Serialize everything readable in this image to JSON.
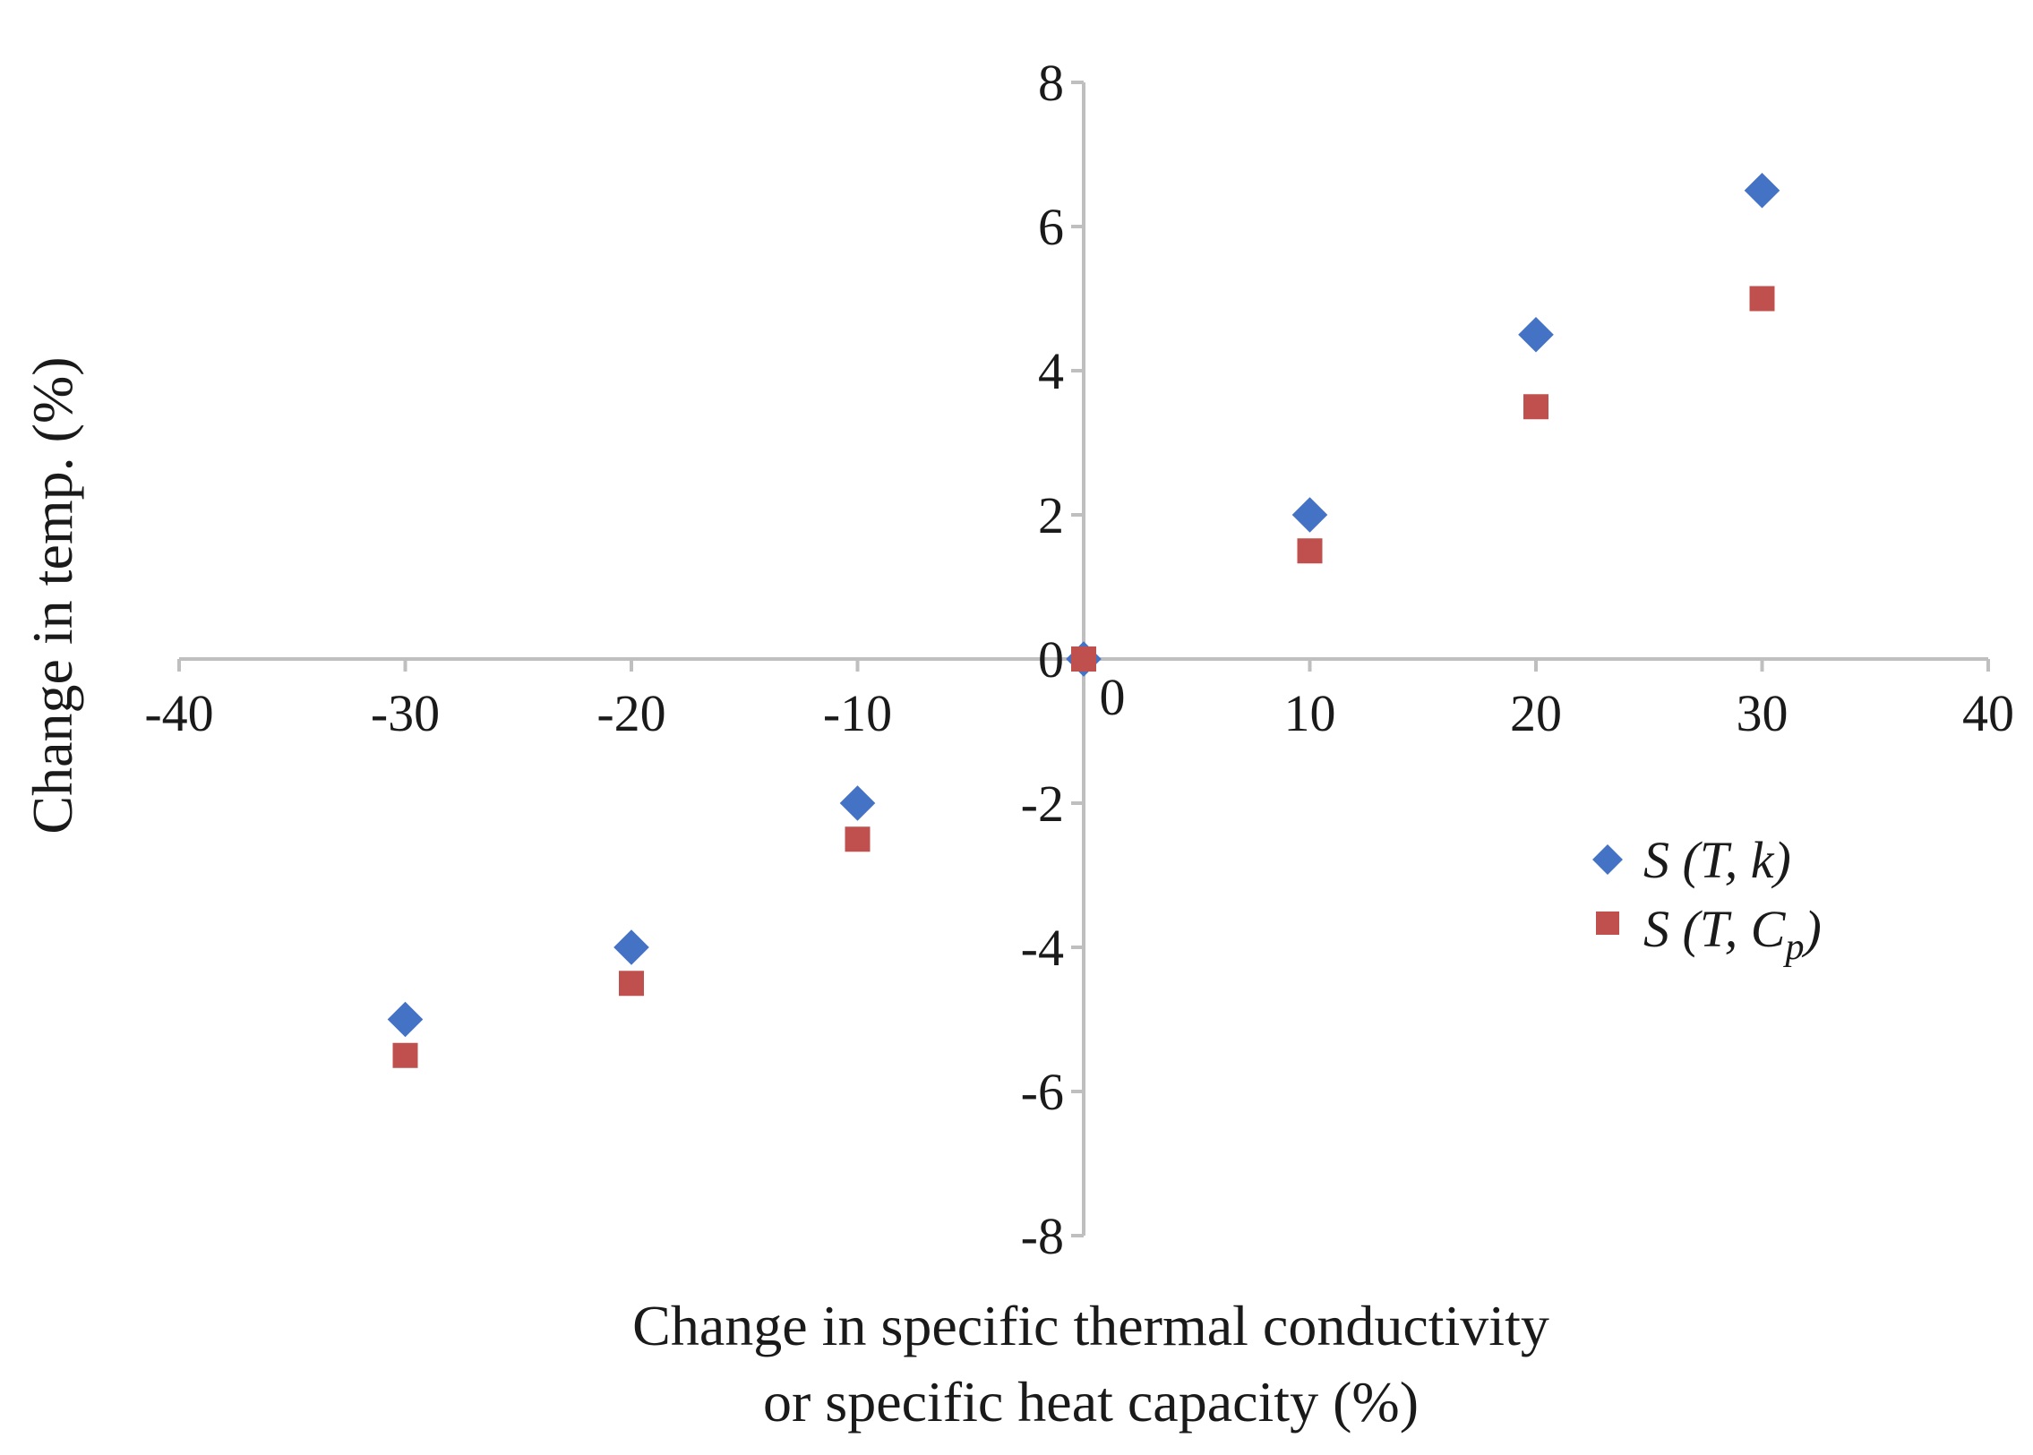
{
  "chart_data": {
    "type": "scatter",
    "xlabel_lines": [
      "Change in specific thermal conductivity",
      "or specific heat capacity (%)"
    ],
    "ylabel": "Change in temp. (%)",
    "xlim": [
      -40,
      40
    ],
    "ylim": [
      -8,
      8
    ],
    "x_ticks": [
      -40,
      -30,
      -20,
      -10,
      0,
      10,
      20,
      30,
      40
    ],
    "y_ticks": [
      -8,
      -6,
      -4,
      -2,
      0,
      2,
      4,
      6,
      8
    ],
    "grid": false,
    "legend_position": "right",
    "series": [
      {
        "key": "tk",
        "name_parts": [
          "S (T, k)"
        ],
        "marker": "diamond",
        "color": "#4472C4",
        "x": [
          -30,
          -20,
          -10,
          0,
          10,
          20,
          30
        ],
        "y": [
          -5,
          -4,
          -2,
          0,
          2,
          4.5,
          6.5
        ]
      },
      {
        "key": "tcp",
        "name_parts": [
          "S (T, C",
          "p",
          ")"
        ],
        "marker": "square",
        "color": "#C0504D",
        "x": [
          -30,
          -20,
          -10,
          0,
          10,
          20,
          30
        ],
        "y": [
          -5.5,
          -4.5,
          -2.5,
          0,
          1.5,
          3.5,
          5
        ]
      }
    ]
  }
}
